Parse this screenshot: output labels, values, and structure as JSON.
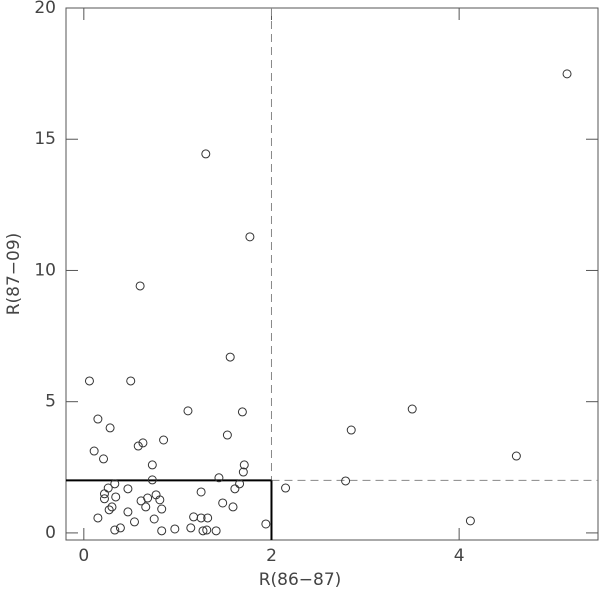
{
  "chart_data": {
    "type": "scatter",
    "x_label": "R(86−87)",
    "y_label": "R(87−09)",
    "x": [
      0.06,
      0.5,
      0.15,
      0.11,
      0.21,
      0.28,
      1.3,
      1.77,
      0.6,
      1.56,
      1.11,
      1.69,
      1.53,
      0.63,
      0.58,
      0.85,
      0.73,
      1.71,
      1.7,
      0.73,
      1.44,
      1.66,
      1.61,
      1.25,
      0.33,
      0.26,
      0.22,
      0.22,
      0.47,
      0.34,
      0.68,
      0.77,
      0.81,
      0.61,
      0.66,
      0.83,
      0.3,
      0.27,
      0.47,
      0.15,
      0.75,
      0.54,
      1.17,
      1.25,
      1.32,
      1.48,
      1.59,
      0.33,
      0.39,
      0.83,
      0.97,
      1.14,
      1.27,
      1.31,
      1.41,
      1.94,
      2.15,
      2.79,
      2.85,
      3.5,
      4.61,
      4.12,
      5.15
    ],
    "values": [
      5.79,
      5.79,
      4.34,
      3.12,
      2.82,
      4.0,
      14.44,
      11.28,
      9.41,
      6.7,
      4.65,
      4.61,
      3.73,
      3.43,
      3.31,
      3.54,
      2.59,
      2.59,
      2.32,
      2.02,
      2.1,
      1.87,
      1.68,
      1.56,
      1.87,
      1.71,
      1.49,
      1.3,
      1.68,
      1.37,
      1.33,
      1.45,
      1.26,
      1.22,
      0.99,
      0.91,
      0.99,
      0.88,
      0.8,
      0.57,
      0.53,
      0.42,
      0.61,
      0.57,
      0.57,
      1.14,
      0.99,
      0.11,
      0.19,
      0.08,
      0.15,
      0.19,
      0.08,
      0.11,
      0.08,
      0.34,
      1.71,
      1.98,
      3.92,
      4.72,
      2.93,
      0.46,
      17.49
    ],
    "xlim": [
      -0.19,
      5.48
    ],
    "ylim": [
      -0.27,
      20
    ],
    "xticks": [
      0,
      2,
      4
    ],
    "yticks": [
      0,
      5,
      10,
      15,
      20
    ],
    "reference_lines": {
      "x": 2,
      "y": 2
    },
    "color": "#333333"
  }
}
